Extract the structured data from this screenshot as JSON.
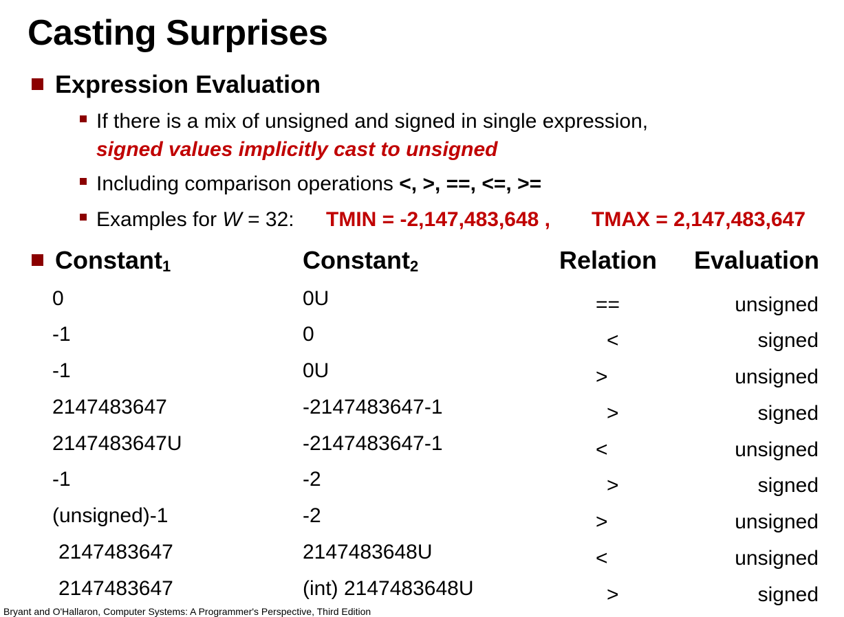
{
  "title": "Casting Surprises",
  "bullets": {
    "expression_evaluation": "Expression Evaluation",
    "mix_text": "If there is a mix of unsigned and signed in single expression,",
    "mix_emphasis": "signed values implicitly cast to unsigned",
    "comparison_text": "Including comparison operations ",
    "comparison_ops": "<, >, ==, <=, >=",
    "examples_prefix": "Examples for ",
    "examples_var": "W",
    "examples_eq": " = 32:",
    "tmin": "TMIN = -2,147,483,648 ,",
    "tmax": "TMAX = 2,147,483,647"
  },
  "table": {
    "headers": {
      "constant1": "Constant",
      "constant1_sub": "1",
      "constant2": "Constant",
      "constant2_sub": "2",
      "relation": "Relation",
      "evaluation": "Evaluation"
    },
    "rows": [
      {
        "c1": "0",
        "c2": "0U",
        "rel": "==",
        "eval": "unsigned"
      },
      {
        "c1": "-1",
        "c2": "0",
        "rel": "<",
        "eval": "signed"
      },
      {
        "c1": "-1",
        "c2": "0U",
        "rel": ">",
        "eval": "unsigned"
      },
      {
        "c1": "2147483647",
        "c2": "-2147483647-1",
        "rel": ">",
        "eval": "signed"
      },
      {
        "c1": "2147483647U",
        "c2": "-2147483647-1",
        "rel": "<",
        "eval": "unsigned"
      },
      {
        "c1": "-1",
        "c2": "-2",
        "rel": ">",
        "eval": "signed"
      },
      {
        "c1": "(unsigned)-1",
        "c2": "-2",
        "rel": ">",
        "eval": "unsigned"
      },
      {
        "c1": "2147483647",
        "c2": "2147483648U",
        "rel": "<",
        "eval": "unsigned"
      },
      {
        "c1": "2147483647",
        "c2": "(int) 2147483648U",
        "rel": ">",
        "eval": "signed"
      }
    ]
  },
  "footer": "Bryant and O'Hallaron, Computer Systems: A Programmer's Perspective, Third Edition",
  "colors": {
    "accent": "#c00000",
    "bullet": "#8b0000"
  }
}
